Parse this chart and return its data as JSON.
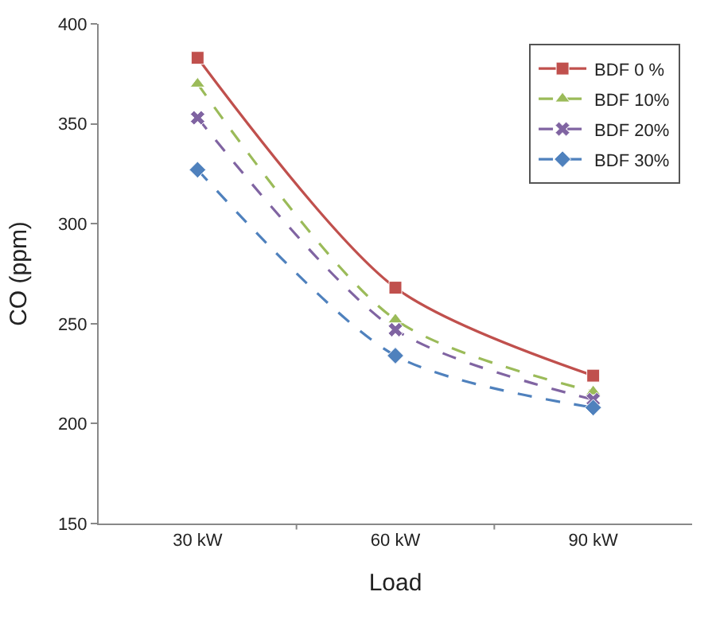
{
  "chart_data": {
    "type": "line",
    "xlabel": "Load",
    "ylabel": "CO (ppm)",
    "categories": [
      "30 kW",
      "60 kW",
      "90 kW"
    ],
    "series": [
      {
        "name": "BDF 0 %",
        "color": "#c0504d",
        "values": [
          383,
          268,
          224
        ],
        "marker": "square",
        "line_style": "solid"
      },
      {
        "name": "BDF 10%",
        "color": "#9bbb59",
        "values": [
          370,
          252,
          216
        ],
        "marker": "triangle",
        "line_style": "dashed"
      },
      {
        "name": "BDF 20%",
        "color": "#8064a2",
        "values": [
          353,
          247,
          212
        ],
        "marker": "cross",
        "line_style": "dashed"
      },
      {
        "name": "BDF 30%",
        "color": "#4f81bd",
        "values": [
          327,
          234,
          208
        ],
        "marker": "diamond",
        "line_style": "dashed"
      }
    ],
    "ylim": [
      150,
      400
    ],
    "yticks": [
      150,
      200,
      250,
      300,
      350,
      400
    ],
    "legend": "top right"
  }
}
